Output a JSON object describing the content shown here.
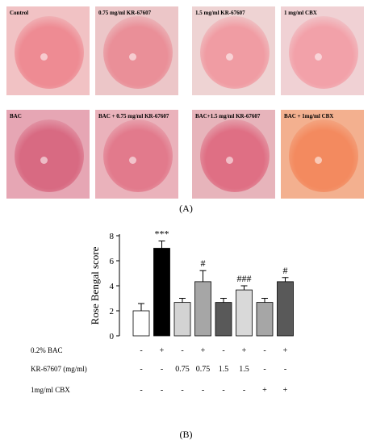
{
  "photos": {
    "row1": [
      {
        "label": "Control",
        "tone": "#f1c2c4",
        "eye": "#ee8b93"
      },
      {
        "label": "0.75 mg/ml KR-67607",
        "tone": "#ecc6c8",
        "eye": "#ea8f98"
      },
      {
        "label": "1.5 mg/ml KR-67607",
        "tone": "#eed3d3",
        "eye": "#f09ca3"
      },
      {
        "label": "1 mg/ml CBX",
        "tone": "#f0d1d4",
        "eye": "#f2a1a9"
      }
    ],
    "row2": [
      {
        "label": "BAC",
        "tone": "#e6a6b4",
        "eye": "#d86a82"
      },
      {
        "label": "BAC + 0.75 mg/ml KR-67607",
        "tone": "#eab2bb",
        "eye": "#e27a8c"
      },
      {
        "label": "BAC+1.5 mg/ml KR-67607",
        "tone": "#e7b4bb",
        "eye": "#df6f84"
      },
      {
        "label": "BAC + 1mg/ml CBX",
        "tone": "#f3b08f",
        "eye": "#f38a5f"
      }
    ]
  },
  "panel_labels": {
    "a": "(A)",
    "b": "(B)"
  },
  "chart_data": {
    "type": "bar",
    "ylabel": "Rose Bengal score",
    "ylim": [
      0,
      8
    ],
    "yticks": [
      "0",
      "2",
      "4",
      "6",
      "8"
    ],
    "values": [
      2.0,
      7.0,
      2.67,
      4.33,
      2.67,
      3.67,
      2.67,
      4.33
    ],
    "errors": [
      0.58,
      0.58,
      0.33,
      0.88,
      0.33,
      0.33,
      0.33,
      0.33
    ],
    "bar_colors": [
      "#ffffff",
      "#000000",
      "#d3d3d3",
      "#a6a6a6",
      "#595959",
      "#d9d9d9",
      "#a6a6a6",
      "#595959"
    ],
    "annotations": [
      "",
      "***",
      "",
      "#",
      "",
      "###",
      "",
      "#"
    ],
    "table": {
      "rows": [
        {
          "label": "0.2% BAC",
          "cells": [
            "-",
            "+",
            "-",
            "+",
            "-",
            "+",
            "-",
            "+"
          ]
        },
        {
          "label": "KR-67607 (mg/ml)",
          "cells": [
            "-",
            "-",
            "0.75",
            "0.75",
            "1.5",
            "1.5",
            "-",
            "-"
          ]
        },
        {
          "label": "1mg/ml CBX",
          "cells": [
            "-",
            "-",
            "-",
            "-",
            "-",
            "-",
            "+",
            "+"
          ]
        }
      ]
    }
  }
}
